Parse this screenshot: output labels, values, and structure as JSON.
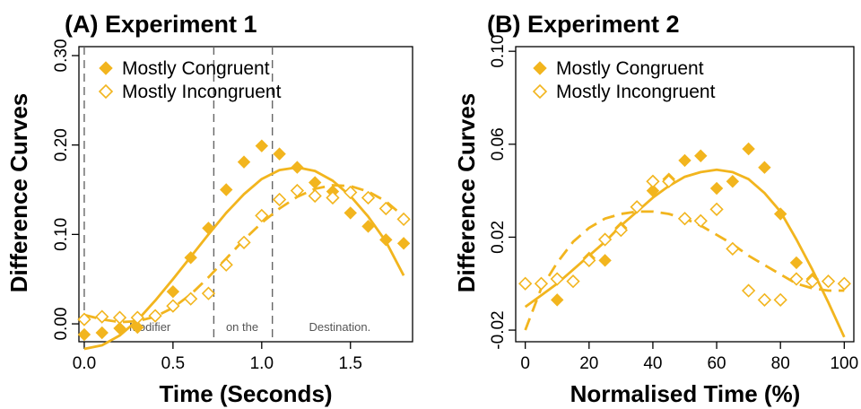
{
  "colors": {
    "series": "#F2B51E",
    "axis": "#000000",
    "phase_line": "#666666",
    "phase_text": "#555555"
  },
  "chart_data": [
    {
      "type": "scatter",
      "title": "(A) Experiment 1",
      "xlabel": "Time (Seconds)",
      "ylabel": "Difference Curves",
      "xlim": [
        -0.03,
        1.85
      ],
      "ylim": [
        -0.02,
        0.31
      ],
      "xticks": [
        0.0,
        0.5,
        1.0,
        1.5
      ],
      "xtick_labels": [
        "0.0",
        "0.5",
        "1.0",
        "1.5"
      ],
      "yticks": [
        0.0,
        0.1,
        0.2,
        0.3
      ],
      "ytick_labels": [
        "0.00",
        "0.10",
        "0.20",
        "0.30"
      ],
      "legend": {
        "position": "top-left"
      },
      "phase_boundaries": [
        0.0,
        0.73,
        1.06
      ],
      "phase_labels": [
        {
          "text": "Modifier",
          "x": 0.37
        },
        {
          "text": "on the",
          "x": 0.89
        },
        {
          "text": "Destination.",
          "x": 1.44
        }
      ],
      "series": [
        {
          "name": "Mostly Congruent",
          "marker": "filled-diamond",
          "line": "solid",
          "x": [
            0.0,
            0.1,
            0.2,
            0.3,
            0.5,
            0.6,
            0.7,
            0.8,
            0.9,
            1.0,
            1.1,
            1.2,
            1.3,
            1.4,
            1.5,
            1.6,
            1.7,
            1.8
          ],
          "y": [
            -0.012,
            -0.01,
            -0.005,
            -0.004,
            0.036,
            0.074,
            0.107,
            0.15,
            0.181,
            0.199,
            0.19,
            0.175,
            0.158,
            0.148,
            0.124,
            0.109,
            0.094,
            0.09
          ],
          "fit_x": [
            0.0,
            0.1,
            0.2,
            0.3,
            0.4,
            0.5,
            0.6,
            0.7,
            0.8,
            0.9,
            1.0,
            1.1,
            1.2,
            1.3,
            1.4,
            1.5,
            1.6,
            1.7,
            1.8
          ],
          "fit_y": [
            -0.028,
            -0.024,
            -0.013,
            0.004,
            0.026,
            0.05,
            0.075,
            0.1,
            0.124,
            0.145,
            0.162,
            0.172,
            0.175,
            0.171,
            0.16,
            0.143,
            0.12,
            0.092,
            0.054
          ]
        },
        {
          "name": "Mostly Incongruent",
          "marker": "open-diamond",
          "line": "dashed",
          "x": [
            0.0,
            0.1,
            0.2,
            0.3,
            0.4,
            0.5,
            0.6,
            0.7,
            0.8,
            0.9,
            1.0,
            1.1,
            1.2,
            1.3,
            1.4,
            1.5,
            1.6,
            1.7,
            1.8
          ],
          "y": [
            0.005,
            0.008,
            0.007,
            0.007,
            0.009,
            0.02,
            0.028,
            0.034,
            0.066,
            0.091,
            0.121,
            0.139,
            0.149,
            0.143,
            0.141,
            0.147,
            0.141,
            0.129,
            0.117
          ],
          "fit_x": [
            0.0,
            0.1,
            0.2,
            0.3,
            0.4,
            0.5,
            0.6,
            0.7,
            0.8,
            0.9,
            1.0,
            1.1,
            1.2,
            1.3,
            1.4,
            1.5,
            1.6,
            1.7,
            1.8
          ],
          "fit_y": [
            0.01,
            0.005,
            0.002,
            0.003,
            0.008,
            0.018,
            0.033,
            0.052,
            0.073,
            0.094,
            0.113,
            0.129,
            0.142,
            0.151,
            0.155,
            0.154,
            0.148,
            0.137,
            0.12
          ]
        }
      ]
    },
    {
      "type": "scatter",
      "title": "(B) Experiment 2",
      "xlabel": "Normalised Time (%)",
      "ylabel": "Difference Curves",
      "xlim": [
        -3,
        103
      ],
      "ylim": [
        -0.025,
        0.102
      ],
      "xticks": [
        0,
        20,
        40,
        60,
        80,
        100
      ],
      "xtick_labels": [
        "0",
        "20",
        "40",
        "60",
        "80",
        "100"
      ],
      "yticks": [
        -0.02,
        0.02,
        0.06,
        0.1
      ],
      "ytick_labels": [
        "-0.02",
        "0.02",
        "0.06",
        "0.10"
      ],
      "legend": {
        "position": "top-left"
      },
      "series": [
        {
          "name": "Mostly Congruent",
          "marker": "filled-diamond",
          "line": "solid",
          "x": [
            10,
            20,
            25,
            30,
            35,
            40,
            45,
            50,
            55,
            60,
            65,
            70,
            75,
            80,
            85,
            90
          ],
          "y": [
            -0.007,
            0.011,
            0.01,
            0.024,
            0.033,
            0.04,
            0.045,
            0.053,
            0.055,
            0.041,
            0.044,
            0.058,
            0.05,
            0.03,
            0.009,
            0.002
          ],
          "fit_x": [
            0,
            5,
            10,
            15,
            20,
            25,
            30,
            35,
            40,
            45,
            50,
            55,
            60,
            65,
            70,
            75,
            80,
            85,
            90,
            95,
            100
          ],
          "fit_y": [
            -0.01,
            -0.005,
            0.0,
            0.006,
            0.012,
            0.018,
            0.025,
            0.031,
            0.037,
            0.042,
            0.046,
            0.048,
            0.049,
            0.048,
            0.045,
            0.039,
            0.031,
            0.019,
            0.006,
            -0.008,
            -0.023
          ]
        },
        {
          "name": "Mostly Incongruent",
          "marker": "open-diamond",
          "line": "dashed",
          "x": [
            0,
            5,
            10,
            15,
            20,
            25,
            30,
            35,
            40,
            45,
            50,
            55,
            60,
            65,
            70,
            75,
            80,
            85,
            90,
            95,
            100
          ],
          "y": [
            0.0,
            0.0,
            0.002,
            0.001,
            0.01,
            0.019,
            0.023,
            0.033,
            0.044,
            0.044,
            0.028,
            0.027,
            0.032,
            0.015,
            -0.003,
            -0.007,
            -0.007,
            0.002,
            0.001,
            0.001,
            0.0
          ],
          "fit_x": [
            0,
            5,
            10,
            15,
            20,
            25,
            30,
            35,
            40,
            45,
            50,
            55,
            60,
            65,
            70,
            75,
            80,
            85,
            90,
            95,
            100
          ],
          "fit_y": [
            -0.02,
            -0.002,
            0.009,
            0.018,
            0.024,
            0.028,
            0.03,
            0.031,
            0.031,
            0.03,
            0.028,
            0.025,
            0.021,
            0.017,
            0.012,
            0.008,
            0.004,
            0.0,
            -0.002,
            -0.003,
            -0.003
          ]
        }
      ]
    }
  ]
}
